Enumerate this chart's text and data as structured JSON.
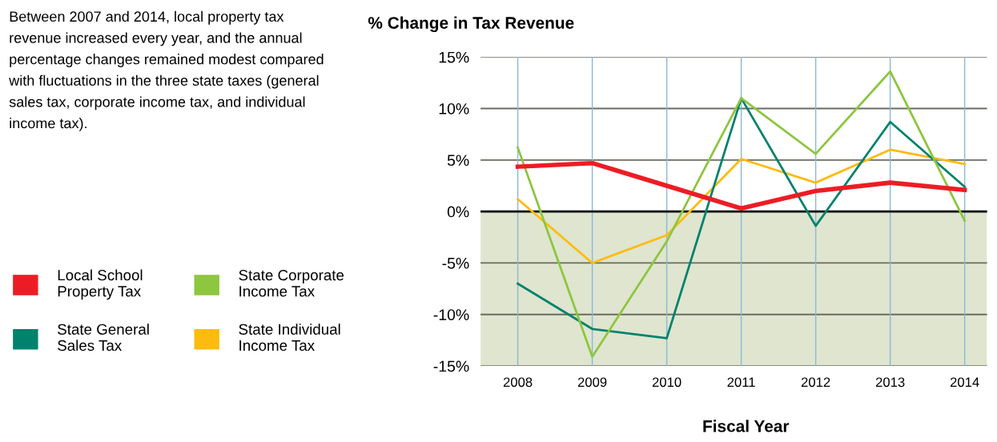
{
  "chart_data": {
    "type": "line",
    "title": "% Change in Tax Revenue",
    "xlabel": "Fiscal Year",
    "annotations": [
      "Between 2007 and 2014, local property tax revenue increased every year, and the annual percentage changes remained modest compared with fluctuations in the three state taxes (general sales tax, corporate income tax, and individual income tax)."
    ],
    "categories": [
      "2008",
      "2009",
      "2010",
      "2011",
      "2012",
      "2013",
      "2014"
    ],
    "series": [
      {
        "name": "Local School Property Tax",
        "color": "#ed1c24",
        "values": [
          4.35,
          4.7,
          2.5,
          0.3,
          2.0,
          2.8,
          2.1
        ]
      },
      {
        "name": "State Corporate Income Tax",
        "color": "#8dc63f",
        "values": [
          6.2,
          -14.1,
          -2.9,
          11.0,
          5.6,
          13.6,
          -0.9
        ]
      },
      {
        "name": "State General Sales Tax",
        "color": "#00826c",
        "values": [
          -7.0,
          -11.4,
          -12.3,
          11.0,
          -1.4,
          8.7,
          2.4
        ]
      },
      {
        "name": "State Individual Income Tax",
        "color": "#fdbb10",
        "values": [
          1.2,
          -5.0,
          -2.3,
          5.1,
          2.8,
          6.0,
          4.6
        ]
      }
    ],
    "ylim": [
      -15,
      15
    ],
    "yticks": [
      {
        "value": -15,
        "label": "-15%"
      },
      {
        "value": -10,
        "label": "-10%"
      },
      {
        "value": -5,
        "label": "-5%"
      },
      {
        "value": 0,
        "label": "0%"
      },
      {
        "value": 5,
        "label": "5%"
      },
      {
        "value": 10,
        "label": "10%"
      },
      {
        "value": 15,
        "label": "15%"
      }
    ],
    "ref_lines": [
      {
        "axis": "y",
        "value": 0,
        "color": "#000000"
      }
    ],
    "bands": [
      {
        "axis": "y",
        "from": -15,
        "to": 0,
        "color": "#dfe5cf"
      }
    ],
    "grid": true,
    "legend": "left",
    "marker": "none",
    "line_style": "solid"
  }
}
